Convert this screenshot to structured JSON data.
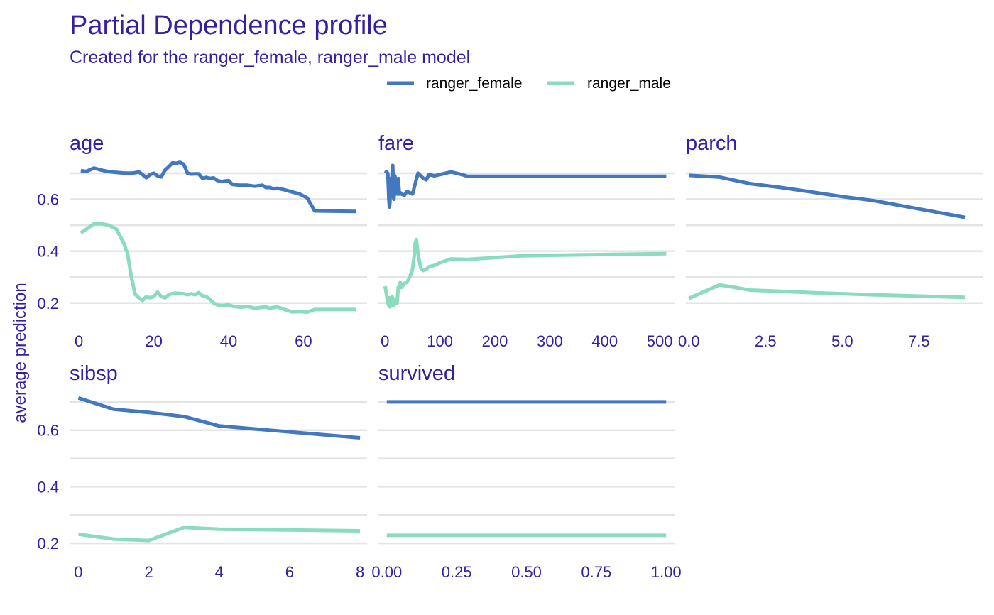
{
  "chart_data": {
    "type": "line",
    "title": "Partial Dependence profile",
    "subtitle": "Created for the ranger_female, ranger_male model",
    "ylabel": "average prediction",
    "legend_position": "top",
    "grid": true,
    "series_meta": [
      {
        "name": "ranger_female",
        "color": "#4378bf"
      },
      {
        "name": "ranger_male",
        "color": "#8bdcbe"
      }
    ],
    "panels": [
      {
        "label": "age",
        "xlim": [
          -2.5,
          77
        ],
        "ylim": [
          0.12,
          0.76
        ],
        "x_ticks": [
          0,
          20,
          40,
          60
        ],
        "x_tick_labels": [
          "0",
          "20",
          "40",
          "60"
        ],
        "y_ticks": [
          0.2,
          0.4,
          0.6
        ],
        "y_tick_labels": [
          "0.2",
          "0.4",
          "0.6"
        ],
        "series": [
          {
            "name": "ranger_female",
            "x": [
              0.5,
              2,
              4,
              6,
              8,
              10,
              12,
              14,
              15,
              16,
              17,
              18,
              19,
              20,
              21,
              22,
              23,
              24,
              25,
              26,
              27,
              28,
              29,
              30,
              31,
              32,
              33,
              34,
              35,
              36,
              37,
              38,
              40,
              41,
              43,
              45,
              47,
              49,
              50,
              51,
              52,
              53,
              55,
              57,
              59,
              61,
              63,
              74
            ],
            "y": [
              0.71,
              0.707,
              0.72,
              0.712,
              0.706,
              0.703,
              0.701,
              0.7,
              0.702,
              0.705,
              0.695,
              0.683,
              0.695,
              0.7,
              0.69,
              0.686,
              0.712,
              0.725,
              0.74,
              0.738,
              0.742,
              0.735,
              0.7,
              0.697,
              0.698,
              0.698,
              0.68,
              0.684,
              0.68,
              0.682,
              0.672,
              0.668,
              0.672,
              0.657,
              0.654,
              0.654,
              0.65,
              0.654,
              0.645,
              0.645,
              0.64,
              0.642,
              0.636,
              0.628,
              0.62,
              0.605,
              0.555,
              0.553
            ]
          },
          {
            "name": "ranger_male",
            "x": [
              0.5,
              2,
              4,
              6,
              8,
              10,
              12,
              13,
              14,
              15,
              16,
              17,
              18,
              19,
              20,
              21,
              22,
              23,
              24,
              25,
              26,
              27,
              28,
              29,
              30,
              31,
              32,
              33,
              34,
              35,
              36,
              37,
              38,
              40,
              41,
              43,
              45,
              47,
              49,
              50,
              51,
              52,
              53,
              55,
              57,
              59,
              61,
              63,
              74
            ],
            "y": [
              0.47,
              0.485,
              0.505,
              0.505,
              0.5,
              0.485,
              0.43,
              0.39,
              0.3,
              0.235,
              0.22,
              0.21,
              0.225,
              0.22,
              0.225,
              0.242,
              0.225,
              0.22,
              0.232,
              0.237,
              0.238,
              0.237,
              0.236,
              0.232,
              0.236,
              0.232,
              0.24,
              0.228,
              0.225,
              0.215,
              0.2,
              0.193,
              0.19,
              0.193,
              0.188,
              0.184,
              0.187,
              0.18,
              0.184,
              0.185,
              0.18,
              0.183,
              0.185,
              0.175,
              0.166,
              0.167,
              0.165,
              0.175,
              0.175
            ]
          }
        ]
      },
      {
        "label": "fare",
        "xlim": [
          -12,
          527
        ],
        "ylim": [
          0.12,
          0.76
        ],
        "x_ticks": [
          0,
          100,
          200,
          300,
          400,
          500
        ],
        "x_tick_labels": [
          "0",
          "100",
          "200",
          "300",
          "400",
          "500"
        ],
        "y_ticks": [
          0.2,
          0.4,
          0.6
        ],
        "y_tick_labels": [
          "0.2",
          "0.4",
          "0.6"
        ],
        "series": [
          {
            "name": "ranger_female",
            "x": [
              0,
              3,
              5,
              7,
              8,
              9,
              10,
              11,
              12,
              13,
              14,
              15,
              16,
              17,
              18,
              20,
              22,
              24,
              26,
              28,
              30,
              35,
              40,
              45,
              50,
              55,
              60,
              70,
              75,
              80,
              90,
              100,
              110,
              120,
              130,
              140,
              150,
              200,
              250,
              300,
              400,
              512
            ],
            "y": [
              0.71,
              0.705,
              0.7,
              0.6,
              0.57,
              0.59,
              0.68,
              0.61,
              0.63,
              0.7,
              0.73,
              0.66,
              0.6,
              0.62,
              0.69,
              0.64,
              0.62,
              0.68,
              0.62,
              0.625,
              0.62,
              0.615,
              0.63,
              0.625,
              0.62,
              0.66,
              0.7,
              0.68,
              0.675,
              0.695,
              0.69,
              0.695,
              0.7,
              0.705,
              0.7,
              0.695,
              0.688,
              0.688,
              0.688,
              0.688,
              0.688,
              0.688
            ]
          },
          {
            "name": "ranger_male",
            "x": [
              0,
              3,
              5,
              7,
              8,
              9,
              10,
              11,
              12,
              13,
              14,
              15,
              16,
              17,
              18,
              20,
              22,
              24,
              26,
              28,
              30,
              35,
              40,
              45,
              50,
              53,
              55,
              57,
              60,
              65,
              70,
              75,
              80,
              90,
              100,
              120,
              150,
              200,
              250,
              300,
              400,
              512
            ],
            "y": [
              0.265,
              0.23,
              0.2,
              0.19,
              0.22,
              0.185,
              0.215,
              0.2,
              0.21,
              0.225,
              0.22,
              0.19,
              0.2,
              0.195,
              0.205,
              0.215,
              0.2,
              0.26,
              0.26,
              0.28,
              0.26,
              0.275,
              0.28,
              0.3,
              0.33,
              0.38,
              0.43,
              0.445,
              0.39,
              0.335,
              0.325,
              0.33,
              0.34,
              0.345,
              0.355,
              0.37,
              0.368,
              0.375,
              0.382,
              0.384,
              0.387,
              0.39
            ]
          }
        ]
      },
      {
        "label": "parch",
        "xlim": [
          -0.1,
          9.6
        ],
        "ylim": [
          0.12,
          0.76
        ],
        "x_ticks": [
          0,
          2.5,
          5,
          7.5
        ],
        "x_tick_labels": [
          "0.0",
          "2.5",
          "5.0",
          "7.5"
        ],
        "y_ticks": [
          0.2,
          0.4,
          0.6
        ],
        "y_tick_labels": [
          "0.2",
          "0.4",
          "0.6"
        ],
        "series": [
          {
            "name": "ranger_female",
            "x": [
              0,
              1,
              2,
              3,
              4,
              5,
              6,
              9
            ],
            "y": [
              0.692,
              0.685,
              0.66,
              0.645,
              0.628,
              0.61,
              0.595,
              0.53
            ]
          },
          {
            "name": "ranger_male",
            "x": [
              0,
              1,
              2,
              3,
              4,
              5,
              6,
              9
            ],
            "y": [
              0.218,
              0.27,
              0.25,
              0.245,
              0.24,
              0.236,
              0.232,
              0.222
            ]
          }
        ]
      },
      {
        "label": "sibsp",
        "xlim": [
          -0.25,
          8.2
        ],
        "ylim": [
          0.16,
          0.75
        ],
        "x_ticks": [
          0,
          2,
          4,
          6,
          8
        ],
        "x_tick_labels": [
          "0",
          "2",
          "4",
          "6",
          "8"
        ],
        "y_ticks": [
          0.2,
          0.4,
          0.6
        ],
        "y_tick_labels": [
          "0.2",
          "0.4",
          "0.6"
        ],
        "series": [
          {
            "name": "ranger_female",
            "x": [
              0,
              1,
              2,
              3,
              4,
              8
            ],
            "y": [
              0.714,
              0.674,
              0.663,
              0.648,
              0.615,
              0.573
            ]
          },
          {
            "name": "ranger_male",
            "x": [
              0,
              1,
              2,
              3,
              4,
              8
            ],
            "y": [
              0.232,
              0.215,
              0.21,
              0.256,
              0.25,
              0.244
            ]
          }
        ]
      },
      {
        "label": "survived",
        "xlim": [
          -0.03,
          1.03
        ],
        "ylim": [
          0.16,
          0.75
        ],
        "x_ticks": [
          0,
          0.25,
          0.5,
          0.75,
          1
        ],
        "x_tick_labels": [
          "0.00",
          "0.25",
          "0.50",
          "0.75",
          "1.00"
        ],
        "y_ticks": [
          0.2,
          0.4,
          0.6
        ],
        "y_tick_labels": [
          "0.2",
          "0.4",
          "0.6"
        ],
        "series": [
          {
            "name": "ranger_female",
            "x": [
              0,
              1
            ],
            "y": [
              0.7,
              0.7
            ]
          },
          {
            "name": "ranger_male",
            "x": [
              0,
              1
            ],
            "y": [
              0.228,
              0.228
            ]
          }
        ]
      }
    ]
  }
}
